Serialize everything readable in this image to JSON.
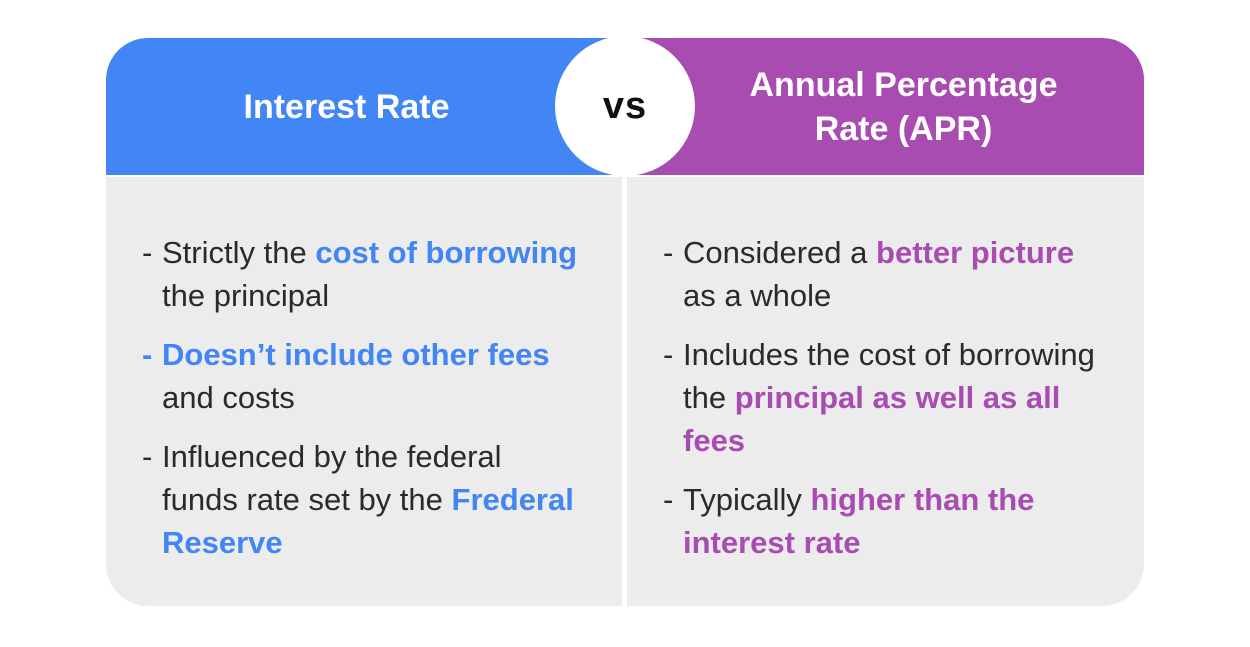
{
  "colors": {
    "left_header": "#4285f4",
    "right_header": "#a84cb2",
    "panel_bg": "#ececec",
    "left_accent": "#4285f4",
    "right_accent": "#a84cb2",
    "body_text": "#2a2a2a"
  },
  "left": {
    "title": "Interest Rate",
    "items": [
      {
        "dash_highlight": false,
        "parts": [
          {
            "text": "Strictly the ",
            "hl": false
          },
          {
            "text": "cost of borrowing",
            "hl": true
          },
          {
            "text": " the principal",
            "hl": false
          }
        ]
      },
      {
        "dash_highlight": true,
        "parts": [
          {
            "text": "Doesn’t include other fees",
            "hl": true
          },
          {
            "text": " and costs",
            "hl": false
          }
        ]
      },
      {
        "dash_highlight": false,
        "parts": [
          {
            "text": "Influenced by the federal funds rate set by the ",
            "hl": false
          },
          {
            "text": "Frederal Reserve",
            "hl": true
          }
        ]
      }
    ]
  },
  "vs_label": "vs",
  "right": {
    "title": "Annual Percentage Rate (APR)",
    "items": [
      {
        "dash_highlight": false,
        "parts": [
          {
            "text": "Considered a ",
            "hl": false
          },
          {
            "text": "better picture",
            "hl": true
          },
          {
            "text": " as a whole",
            "hl": false
          }
        ]
      },
      {
        "dash_highlight": false,
        "parts": [
          {
            "text": "Includes the cost of borrowing the ",
            "hl": false
          },
          {
            "text": "principal as well as all fees",
            "hl": true
          }
        ]
      },
      {
        "dash_highlight": false,
        "parts": [
          {
            "text": "Typically ",
            "hl": false
          },
          {
            "text": "higher than the interest rate",
            "hl": true
          }
        ]
      }
    ]
  }
}
